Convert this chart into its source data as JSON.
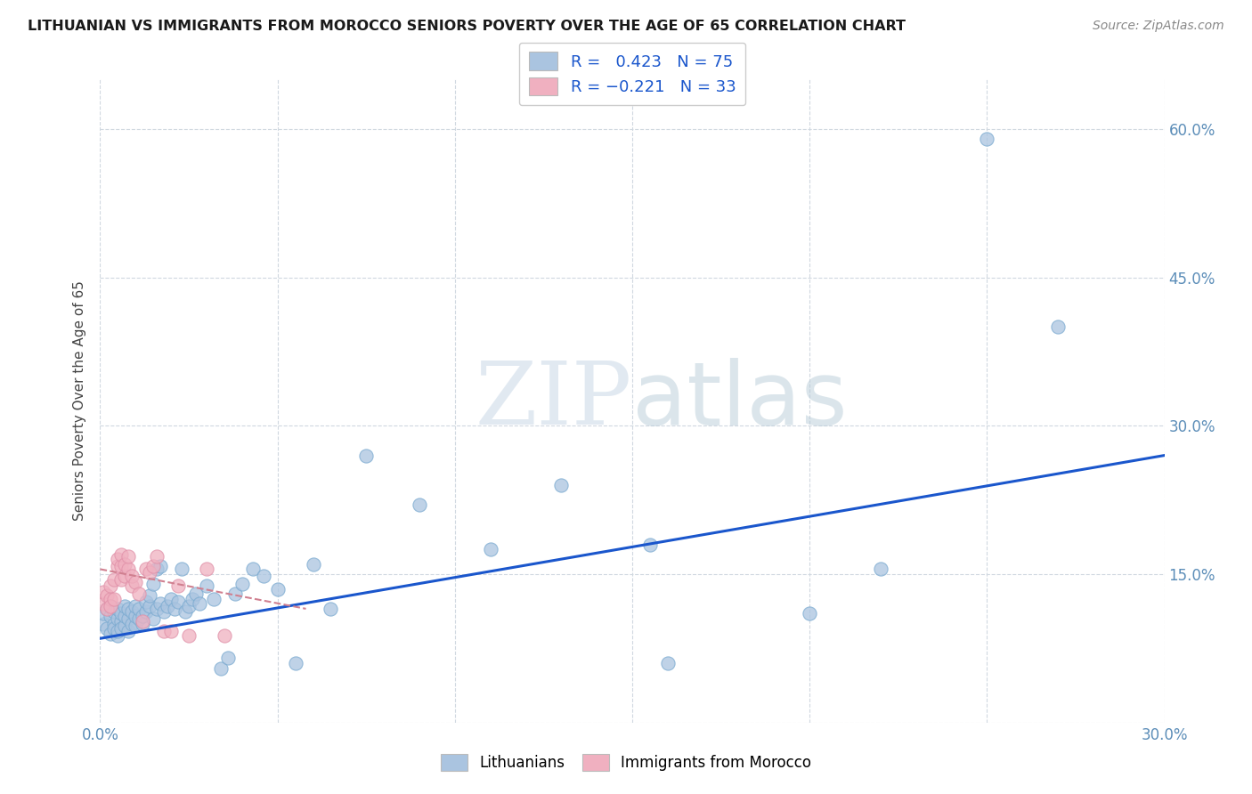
{
  "title": "LITHUANIAN VS IMMIGRANTS FROM MOROCCO SENIORS POVERTY OVER THE AGE OF 65 CORRELATION CHART",
  "source": "Source: ZipAtlas.com",
  "ylabel": "Seniors Poverty Over the Age of 65",
  "xlim": [
    0.0,
    0.3
  ],
  "ylim": [
    0.0,
    0.65
  ],
  "xticks": [
    0.0,
    0.05,
    0.1,
    0.15,
    0.2,
    0.25,
    0.3
  ],
  "yticks": [
    0.0,
    0.15,
    0.3,
    0.45,
    0.6
  ],
  "ytick_labels": [
    "",
    "15.0%",
    "30.0%",
    "45.0%",
    "60.0%"
  ],
  "xtick_labels": [
    "0.0%",
    "",
    "",
    "",
    "",
    "",
    "30.0%"
  ],
  "background_color": "#ffffff",
  "grid_color": "#d0d8e0",
  "watermark_zip": "ZIP",
  "watermark_atlas": "atlas",
  "blue_R": 0.423,
  "blue_N": 75,
  "pink_R": -0.221,
  "pink_N": 33,
  "blue_color": "#aac4e0",
  "blue_edge_color": "#7aaad0",
  "blue_line_color": "#1a56cc",
  "pink_color": "#f0b0c0",
  "pink_edge_color": "#e090a8",
  "pink_line_color": "#d08090",
  "legend1_label": "Lithuanians",
  "legend2_label": "Immigrants from Morocco",
  "blue_line_x0": 0.0,
  "blue_line_y0": 0.085,
  "blue_line_x1": 0.3,
  "blue_line_y1": 0.27,
  "pink_line_x0": 0.0,
  "pink_line_y0": 0.155,
  "pink_line_x1": 0.058,
  "pink_line_y1": 0.115,
  "blue_x": [
    0.001,
    0.001,
    0.002,
    0.002,
    0.003,
    0.003,
    0.003,
    0.004,
    0.004,
    0.004,
    0.005,
    0.005,
    0.005,
    0.005,
    0.006,
    0.006,
    0.006,
    0.007,
    0.007,
    0.007,
    0.008,
    0.008,
    0.008,
    0.009,
    0.009,
    0.01,
    0.01,
    0.01,
    0.011,
    0.011,
    0.012,
    0.012,
    0.013,
    0.013,
    0.014,
    0.014,
    0.015,
    0.015,
    0.016,
    0.016,
    0.017,
    0.017,
    0.018,
    0.019,
    0.02,
    0.021,
    0.022,
    0.023,
    0.024,
    0.025,
    0.026,
    0.027,
    0.028,
    0.03,
    0.032,
    0.034,
    0.036,
    0.038,
    0.04,
    0.043,
    0.046,
    0.05,
    0.055,
    0.06,
    0.065,
    0.075,
    0.09,
    0.11,
    0.13,
    0.155,
    0.16,
    0.2,
    0.22,
    0.25,
    0.27
  ],
  "blue_y": [
    0.1,
    0.11,
    0.095,
    0.115,
    0.09,
    0.108,
    0.118,
    0.1,
    0.112,
    0.095,
    0.088,
    0.105,
    0.115,
    0.092,
    0.102,
    0.11,
    0.095,
    0.098,
    0.108,
    0.118,
    0.092,
    0.105,
    0.115,
    0.1,
    0.112,
    0.098,
    0.108,
    0.118,
    0.105,
    0.115,
    0.1,
    0.108,
    0.112,
    0.122,
    0.118,
    0.128,
    0.105,
    0.14,
    0.115,
    0.155,
    0.12,
    0.158,
    0.112,
    0.118,
    0.125,
    0.115,
    0.122,
    0.155,
    0.112,
    0.118,
    0.125,
    0.13,
    0.12,
    0.138,
    0.125,
    0.055,
    0.065,
    0.13,
    0.14,
    0.155,
    0.148,
    0.135,
    0.06,
    0.16,
    0.115,
    0.27,
    0.22,
    0.175,
    0.24,
    0.18,
    0.06,
    0.11,
    0.155,
    0.59,
    0.4
  ],
  "pink_x": [
    0.001,
    0.001,
    0.002,
    0.002,
    0.003,
    0.003,
    0.003,
    0.004,
    0.004,
    0.005,
    0.005,
    0.006,
    0.006,
    0.006,
    0.007,
    0.007,
    0.008,
    0.008,
    0.009,
    0.009,
    0.01,
    0.011,
    0.012,
    0.013,
    0.014,
    0.015,
    0.016,
    0.018,
    0.02,
    0.022,
    0.025,
    0.03,
    0.035
  ],
  "pink_y": [
    0.12,
    0.132,
    0.115,
    0.128,
    0.125,
    0.138,
    0.118,
    0.125,
    0.145,
    0.158,
    0.165,
    0.145,
    0.158,
    0.17,
    0.148,
    0.16,
    0.155,
    0.168,
    0.138,
    0.148,
    0.142,
    0.13,
    0.102,
    0.155,
    0.152,
    0.158,
    0.168,
    0.092,
    0.092,
    0.138,
    0.088,
    0.155,
    0.088
  ]
}
